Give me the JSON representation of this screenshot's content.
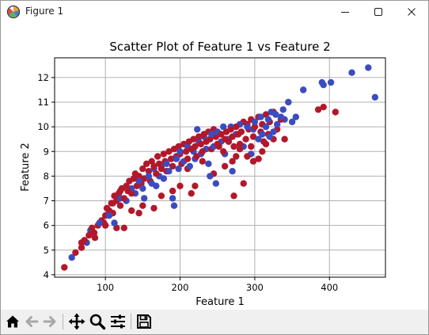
{
  "window": {
    "title": "Figure 1",
    "app_icon": "matplotlib-figure-icon",
    "controls": [
      "minimize-icon",
      "maximize-icon",
      "close-icon"
    ]
  },
  "toolbar": {
    "tools": [
      "home-icon",
      "back-arrow-icon",
      "forward-arrow-icon",
      "pan-move-icon",
      "zoom-magnifier-icon",
      "configure-subplots-icon",
      "save-floppy-icon"
    ]
  },
  "colors": {
    "series_red": "#b2182b",
    "series_blue": "#3b4cc0",
    "grid": "#b0b0b0",
    "toolbar_bg": "#f0f0f0"
  },
  "chart_data": {
    "type": "scatter",
    "title": "Scatter Plot of Feature 1 vs Feature 2",
    "xlabel": "Feature 1",
    "ylabel": "Feature 2",
    "xlim": [
      32,
      475
    ],
    "ylim": [
      3.9,
      12.8
    ],
    "xticks": [
      100,
      200,
      300,
      400
    ],
    "yticks": [
      4,
      5,
      6,
      7,
      8,
      9,
      10,
      11,
      12
    ],
    "grid": true,
    "legend": "none",
    "series": [
      {
        "color": "#b2182b",
        "points": [
          [
            45,
            4.3
          ],
          [
            60,
            4.9
          ],
          [
            68,
            5.1
          ],
          [
            72,
            5.4
          ],
          [
            78,
            5.6
          ],
          [
            82,
            5.9
          ],
          [
            86,
            5.5
          ],
          [
            90,
            6.0
          ],
          [
            95,
            6.2
          ],
          [
            98,
            6.1
          ],
          [
            100,
            6.4
          ],
          [
            102,
            6.7
          ],
          [
            105,
            6.6
          ],
          [
            108,
            6.9
          ],
          [
            110,
            6.5
          ],
          [
            112,
            7.2
          ],
          [
            115,
            7.0
          ],
          [
            118,
            7.3
          ],
          [
            120,
            6.8
          ],
          [
            122,
            7.5
          ],
          [
            125,
            7.1
          ],
          [
            128,
            7.6
          ],
          [
            130,
            7.4
          ],
          [
            132,
            7.8
          ],
          [
            135,
            7.3
          ],
          [
            138,
            7.9
          ],
          [
            140,
            8.1
          ],
          [
            142,
            7.6
          ],
          [
            145,
            8.0
          ],
          [
            148,
            7.7
          ],
          [
            150,
            8.3
          ],
          [
            152,
            7.9
          ],
          [
            155,
            8.5
          ],
          [
            158,
            8.2
          ],
          [
            160,
            7.8
          ],
          [
            162,
            8.6
          ],
          [
            165,
            8.4
          ],
          [
            168,
            8.1
          ],
          [
            170,
            8.8
          ],
          [
            172,
            8.5
          ],
          [
            175,
            8.3
          ],
          [
            178,
            8.9
          ],
          [
            180,
            8.6
          ],
          [
            182,
            8.2
          ],
          [
            185,
            9.0
          ],
          [
            188,
            8.7
          ],
          [
            190,
            8.4
          ],
          [
            192,
            9.1
          ],
          [
            195,
            8.8
          ],
          [
            198,
            9.2
          ],
          [
            200,
            8.9
          ],
          [
            202,
            8.5
          ],
          [
            205,
            9.3
          ],
          [
            208,
            9.0
          ],
          [
            210,
            8.7
          ],
          [
            212,
            9.4
          ],
          [
            215,
            9.1
          ],
          [
            218,
            9.5
          ],
          [
            220,
            9.2
          ],
          [
            222,
            8.8
          ],
          [
            225,
            9.6
          ],
          [
            228,
            9.3
          ],
          [
            230,
            9.0
          ],
          [
            232,
            9.7
          ],
          [
            235,
            9.4
          ],
          [
            238,
            9.8
          ],
          [
            240,
            9.5
          ],
          [
            242,
            9.1
          ],
          [
            245,
            9.9
          ],
          [
            248,
            9.6
          ],
          [
            250,
            9.3
          ],
          [
            252,
            9.2
          ],
          [
            255,
            9.7
          ],
          [
            258,
            9.0
          ],
          [
            260,
            9.5
          ],
          [
            262,
            9.8
          ],
          [
            265,
            9.4
          ],
          [
            268,
            9.9
          ],
          [
            270,
            9.6
          ],
          [
            272,
            9.2
          ],
          [
            275,
            10.0
          ],
          [
            278,
            9.7
          ],
          [
            280,
            9.3
          ],
          [
            282,
            9.8
          ],
          [
            285,
            10.2
          ],
          [
            288,
            9.5
          ],
          [
            290,
            10.1
          ],
          [
            292,
            9.9
          ],
          [
            295,
            10.3
          ],
          [
            298,
            9.6
          ],
          [
            300,
            10.0
          ],
          [
            305,
            10.4
          ],
          [
            308,
            9.8
          ],
          [
            310,
            10.1
          ],
          [
            312,
            9.4
          ],
          [
            315,
            10.5
          ],
          [
            318,
            9.7
          ],
          [
            320,
            10.2
          ],
          [
            325,
            10.6
          ],
          [
            330,
            9.9
          ],
          [
            335,
            10.3
          ],
          [
            340,
            9.5
          ],
          [
            68,
            5.3
          ],
          [
            85,
            5.7
          ],
          [
            100,
            6.0
          ],
          [
            110,
            6.9
          ],
          [
            120,
            7.4
          ],
          [
            135,
            6.6
          ],
          [
            115,
            5.9
          ],
          [
            125,
            5.9
          ],
          [
            145,
            6.5
          ],
          [
            150,
            6.8
          ],
          [
            165,
            6.7
          ],
          [
            175,
            7.2
          ],
          [
            190,
            7.4
          ],
          [
            200,
            7.6
          ],
          [
            210,
            8.3
          ],
          [
            215,
            7.3
          ],
          [
            220,
            7.6
          ],
          [
            230,
            8.6
          ],
          [
            245,
            8.1
          ],
          [
            260,
            8.4
          ],
          [
            270,
            8.6
          ],
          [
            272,
            7.2
          ],
          [
            275,
            8.8
          ],
          [
            280,
            9.1
          ],
          [
            285,
            7.7
          ],
          [
            290,
            8.8
          ],
          [
            295,
            9.2
          ],
          [
            298,
            8.6
          ],
          [
            305,
            8.7
          ],
          [
            310,
            9.0
          ],
          [
            315,
            9.3
          ],
          [
            325,
            9.5
          ],
          [
            385,
            10.7
          ],
          [
            392,
            10.8
          ],
          [
            408,
            10.6
          ]
        ]
      },
      {
        "color": "#3b4cc0",
        "points": [
          [
            55,
            4.7
          ],
          [
            75,
            5.3
          ],
          [
            80,
            5.8
          ],
          [
            92,
            6.1
          ],
          [
            105,
            6.4
          ],
          [
            112,
            6.1
          ],
          [
            120,
            7.1
          ],
          [
            128,
            7.0
          ],
          [
            135,
            7.5
          ],
          [
            140,
            7.3
          ],
          [
            145,
            7.8
          ],
          [
            150,
            7.5
          ],
          [
            152,
            7.1
          ],
          [
            158,
            8.0
          ],
          [
            162,
            7.7
          ],
          [
            165,
            8.3
          ],
          [
            168,
            7.6
          ],
          [
            172,
            8.0
          ],
          [
            175,
            8.4
          ],
          [
            178,
            7.9
          ],
          [
            182,
            8.5
          ],
          [
            185,
            8.2
          ],
          [
            190,
            7.1
          ],
          [
            192,
            6.8
          ],
          [
            195,
            8.7
          ],
          [
            198,
            8.3
          ],
          [
            200,
            9.0
          ],
          [
            205,
            8.6
          ],
          [
            210,
            9.2
          ],
          [
            213,
            8.4
          ],
          [
            218,
            9.0
          ],
          [
            220,
            8.7
          ],
          [
            223,
            9.9
          ],
          [
            225,
            9.4
          ],
          [
            228,
            8.9
          ],
          [
            232,
            9.6
          ],
          [
            235,
            9.1
          ],
          [
            238,
            8.5
          ],
          [
            240,
            8.0
          ],
          [
            242,
            9.7
          ],
          [
            245,
            9.2
          ],
          [
            248,
            7.7
          ],
          [
            250,
            9.8
          ],
          [
            255,
            9.4
          ],
          [
            258,
            10.0
          ],
          [
            260,
            8.9
          ],
          [
            265,
            9.5
          ],
          [
            268,
            10.0
          ],
          [
            270,
            8.2
          ],
          [
            275,
            9.7
          ],
          [
            280,
            10.1
          ],
          [
            285,
            9.2
          ],
          [
            290,
            10.0
          ],
          [
            295,
            8.9
          ],
          [
            298,
            9.9
          ],
          [
            300,
            10.2
          ],
          [
            305,
            9.5
          ],
          [
            308,
            10.4
          ],
          [
            310,
            9.7
          ],
          [
            315,
            10.0
          ],
          [
            318,
            10.3
          ],
          [
            320,
            9.6
          ],
          [
            322,
            10.6
          ],
          [
            325,
            9.8
          ],
          [
            328,
            10.5
          ],
          [
            330,
            10.1
          ],
          [
            335,
            10.4
          ],
          [
            338,
            10.7
          ],
          [
            340,
            10.3
          ],
          [
            345,
            11.0
          ],
          [
            350,
            10.2
          ],
          [
            355,
            10.4
          ],
          [
            365,
            11.5
          ],
          [
            390,
            11.8
          ],
          [
            392,
            11.7
          ],
          [
            402,
            11.8
          ],
          [
            430,
            12.2
          ],
          [
            452,
            12.4
          ],
          [
            461,
            11.2
          ]
        ]
      }
    ]
  }
}
